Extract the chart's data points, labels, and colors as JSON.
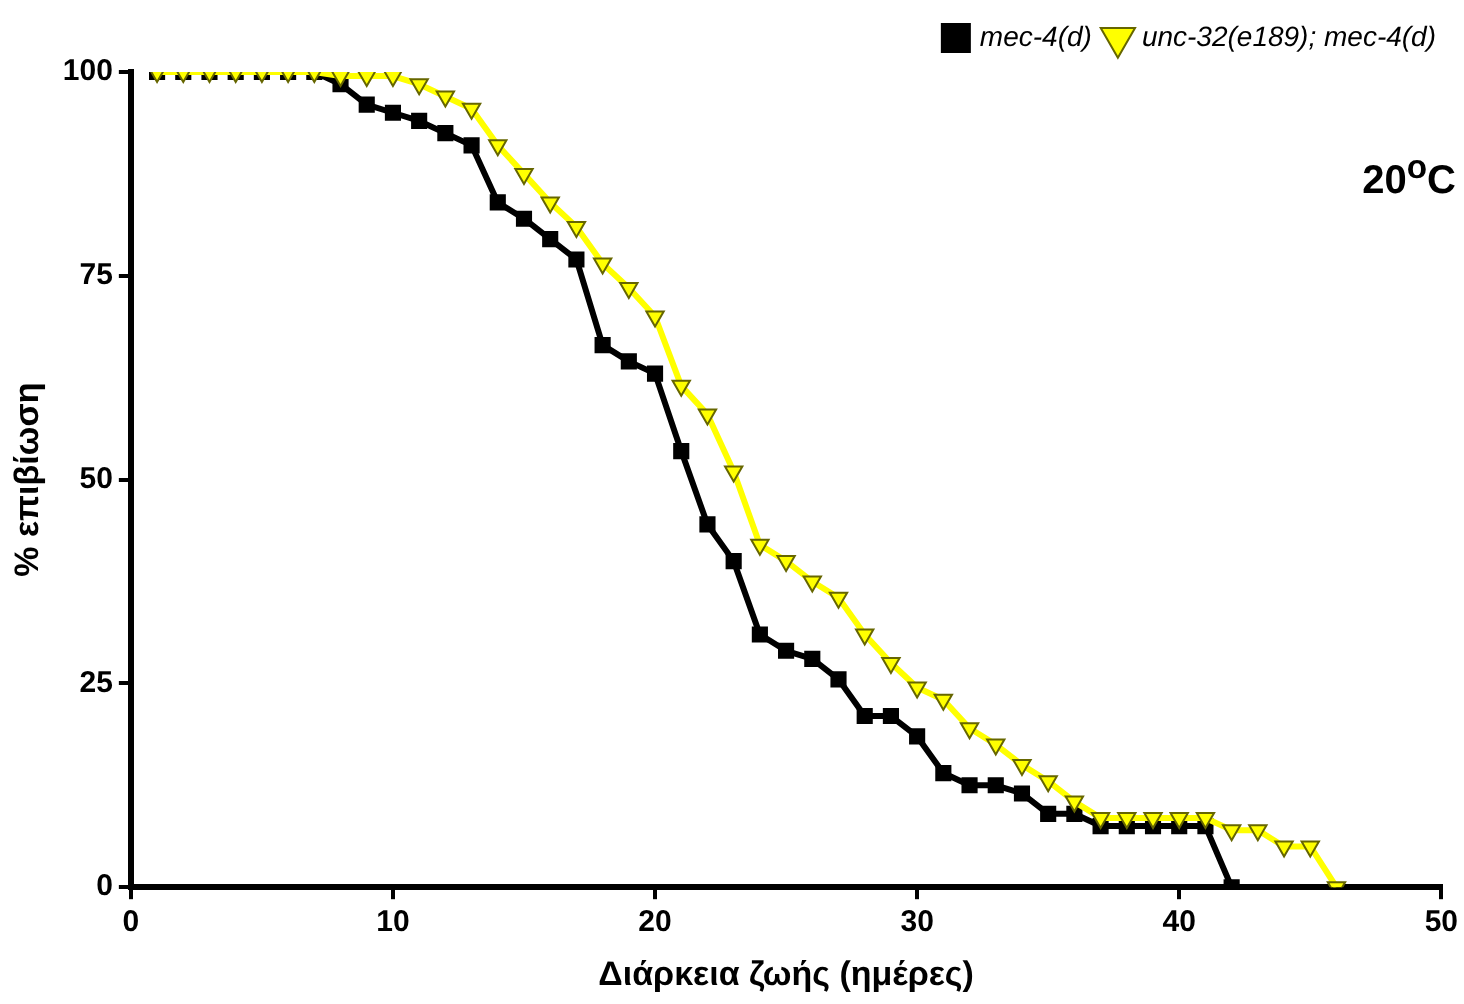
{
  "chart_data": {
    "type": "line",
    "xlabel": "Διάρκεια ζωής (ημέρες)",
    "ylabel": "% επιβίωση",
    "xlim": [
      0,
      50
    ],
    "xticks": [
      0,
      10,
      20,
      30,
      40,
      50
    ],
    "ylim": [
      0,
      100
    ],
    "yticks": [
      0,
      25,
      50,
      75,
      100
    ],
    "grid": false,
    "legend": "top right",
    "annotations": [
      "20$^{o}$C"
    ],
    "series": [
      {
        "name": "mec-4(d)",
        "color": "#000000",
        "marker": "square",
        "x": [
          1,
          2,
          3,
          4,
          5,
          6,
          7,
          8,
          9,
          10,
          11,
          12,
          13,
          14,
          15,
          16,
          17,
          18,
          19,
          20,
          21,
          22,
          23,
          24,
          25,
          26,
          27,
          28,
          29,
          30,
          31,
          32,
          33,
          34,
          35,
          36,
          37,
          38,
          39,
          40,
          41,
          42
        ],
        "values": [
          100,
          100,
          100,
          100,
          100,
          100,
          100,
          98.5,
          96,
          95,
          94,
          92.5,
          91,
          84,
          82,
          79.5,
          77,
          66.5,
          64.5,
          63,
          53.5,
          44.5,
          40,
          31,
          29,
          28,
          25.5,
          21,
          21,
          18.5,
          14,
          12.5,
          12.5,
          11.5,
          9,
          9,
          7.5,
          7.5,
          7.5,
          7.5,
          7.5,
          0
        ]
      },
      {
        "name": "unc-32(e189); mec-4(d)",
        "color": "#ffff00",
        "marker": "triangle",
        "x": [
          1,
          2,
          3,
          4,
          5,
          6,
          7,
          8,
          9,
          10,
          11,
          12,
          13,
          14,
          15,
          16,
          17,
          18,
          19,
          20,
          21,
          22,
          23,
          24,
          25,
          26,
          27,
          28,
          29,
          30,
          31,
          32,
          33,
          34,
          35,
          36,
          37,
          38,
          39,
          40,
          41,
          42,
          43,
          44,
          45,
          46
        ],
        "values": [
          100,
          100,
          100,
          100,
          100,
          100,
          100,
          99.5,
          99.5,
          99.5,
          98.5,
          97,
          95.5,
          91,
          87.5,
          84,
          81,
          76.5,
          73.5,
          70,
          61.5,
          58,
          51,
          42,
          40,
          37.5,
          35.5,
          31,
          27.5,
          24.5,
          23,
          19.5,
          17.5,
          15,
          13,
          10.5,
          8.5,
          8.5,
          8.5,
          8.5,
          8.5,
          7,
          7,
          5,
          5,
          0
        ]
      }
    ]
  }
}
